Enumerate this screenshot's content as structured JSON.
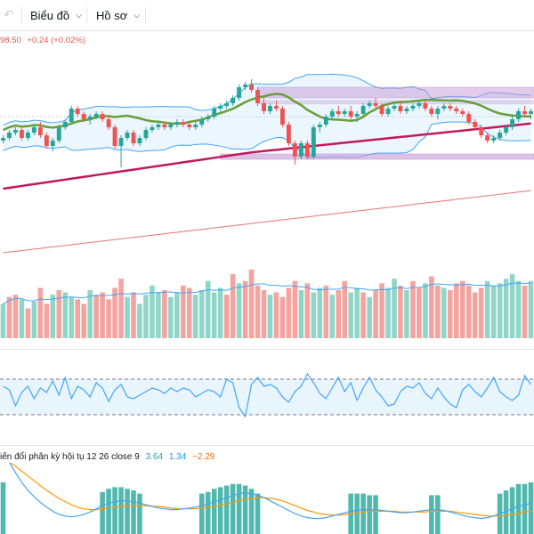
{
  "toolbar": {
    "undo_icon": "undo-arrow-icon",
    "redo_icon": "redo-arrow-icon",
    "chart_menu_label": "Biểu đồ",
    "profile_menu_label": "Hồ sơ",
    "chevron_icon": "chevron-down-icon"
  },
  "legend": {
    "price": "98.50",
    "change": "+0.24 (+0.02%)"
  },
  "macd": {
    "title": "iến đổi phân kỳ hội tụ 12 26 close 9",
    "value1": "3.64",
    "value2": "1.34",
    "value3": "−2.29"
  },
  "colors": {
    "up": "#26a69a",
    "down": "#ef5350",
    "upVol": "#8fd6c9",
    "downVol": "#f4a39f",
    "bollinger": "#42a5f5",
    "bollingerFill": "#e3f2fd",
    "ma_green": "#689f38",
    "ma_crimson": "#c2185b",
    "ma_long": "#e57373",
    "zone": "#c89ad8",
    "rsi": "#42a5f5",
    "macd_line": "#42a5f5",
    "signal_line": "#ff9800"
  },
  "chart_data": {
    "type": "candlestick",
    "price_candles": [
      [
        22.0,
        23.0,
        21.5,
        22.5
      ],
      [
        22.5,
        24.0,
        22.0,
        23.5
      ],
      [
        23.5,
        24.5,
        23.0,
        24.0
      ],
      [
        24.0,
        24.5,
        22.0,
        22.5
      ],
      [
        22.5,
        24.0,
        22.0,
        23.5
      ],
      [
        23.5,
        25.0,
        23.0,
        24.5
      ],
      [
        24.5,
        25.5,
        22.5,
        23.0
      ],
      [
        23.0,
        23.5,
        20.5,
        21.0
      ],
      [
        21.0,
        22.5,
        20.0,
        22.0
      ],
      [
        22.0,
        25.0,
        21.5,
        24.5
      ],
      [
        24.5,
        26.0,
        24.0,
        25.5
      ],
      [
        25.5,
        28.5,
        25.0,
        28.0
      ],
      [
        28.0,
        28.5,
        26.5,
        27.0
      ],
      [
        27.0,
        27.5,
        25.5,
        26.0
      ],
      [
        26.0,
        27.0,
        25.0,
        26.5
      ],
      [
        26.5,
        27.5,
        26.0,
        27.0
      ],
      [
        27.0,
        27.5,
        25.5,
        26.0
      ],
      [
        26.0,
        26.5,
        24.0,
        24.5
      ],
      [
        24.5,
        25.0,
        20.5,
        21.0
      ],
      [
        21.0,
        23.0,
        17.0,
        22.5
      ],
      [
        22.5,
        24.0,
        22.0,
        23.5
      ],
      [
        23.5,
        24.0,
        21.0,
        21.5
      ],
      [
        21.5,
        23.0,
        21.0,
        22.5
      ],
      [
        22.5,
        24.5,
        22.0,
        24.0
      ],
      [
        24.0,
        25.0,
        23.5,
        24.5
      ],
      [
        24.5,
        25.5,
        24.0,
        25.0
      ],
      [
        25.0,
        25.5,
        24.0,
        24.5
      ],
      [
        24.5,
        25.5,
        24.0,
        25.0
      ],
      [
        25.0,
        26.0,
        24.5,
        25.5
      ],
      [
        25.5,
        26.0,
        24.5,
        25.0
      ],
      [
        25.0,
        25.5,
        24.0,
        24.5
      ],
      [
        24.5,
        25.5,
        24.0,
        25.0
      ],
      [
        25.0,
        26.5,
        24.5,
        26.0
      ],
      [
        26.0,
        27.0,
        25.5,
        26.5
      ],
      [
        26.5,
        28.5,
        26.0,
        28.0
      ],
      [
        28.0,
        29.0,
        27.5,
        28.5
      ],
      [
        28.5,
        29.5,
        28.0,
        29.0
      ],
      [
        29.0,
        30.5,
        28.5,
        30.0
      ],
      [
        30.0,
        32.5,
        29.5,
        32.0
      ],
      [
        32.0,
        33.0,
        31.5,
        32.5
      ],
      [
        32.5,
        33.5,
        31.0,
        31.5
      ],
      [
        31.5,
        32.0,
        28.5,
        29.0
      ],
      [
        29.0,
        30.0,
        27.0,
        27.5
      ],
      [
        27.5,
        29.0,
        27.0,
        28.5
      ],
      [
        28.5,
        29.5,
        27.5,
        28.0
      ],
      [
        28.0,
        28.5,
        24.5,
        25.0
      ],
      [
        25.0,
        25.5,
        21.0,
        21.5
      ],
      [
        21.5,
        22.0,
        17.5,
        19.0
      ],
      [
        19.0,
        22.0,
        18.5,
        21.5
      ],
      [
        21.5,
        22.0,
        18.5,
        19.0
      ],
      [
        19.0,
        25.0,
        18.5,
        24.5
      ],
      [
        24.5,
        25.5,
        23.5,
        25.0
      ],
      [
        25.0,
        27.0,
        24.5,
        26.5
      ],
      [
        26.5,
        28.0,
        26.0,
        27.5
      ],
      [
        27.5,
        28.5,
        26.5,
        27.0
      ],
      [
        27.0,
        28.0,
        26.5,
        27.5
      ],
      [
        27.5,
        28.5,
        26.0,
        26.5
      ],
      [
        26.5,
        27.5,
        25.5,
        27.0
      ],
      [
        27.0,
        29.0,
        26.5,
        28.5
      ],
      [
        28.5,
        29.5,
        28.0,
        29.0
      ],
      [
        29.0,
        30.0,
        28.0,
        28.5
      ],
      [
        28.5,
        29.0,
        26.5,
        27.0
      ],
      [
        27.0,
        28.5,
        26.5,
        28.0
      ],
      [
        28.0,
        29.0,
        27.5,
        28.5
      ],
      [
        28.5,
        29.5,
        27.0,
        27.5
      ],
      [
        27.5,
        28.5,
        27.0,
        28.0
      ],
      [
        28.0,
        29.0,
        27.5,
        28.5
      ],
      [
        28.5,
        29.5,
        28.0,
        29.0
      ],
      [
        29.0,
        29.5,
        27.5,
        28.0
      ],
      [
        28.0,
        28.5,
        26.5,
        27.0
      ],
      [
        27.0,
        28.5,
        26.0,
        28.0
      ],
      [
        28.0,
        29.0,
        27.5,
        28.5
      ],
      [
        28.5,
        29.0,
        27.5,
        28.0
      ],
      [
        28.0,
        28.5,
        27.0,
        27.5
      ],
      [
        27.5,
        28.0,
        26.5,
        27.0
      ],
      [
        27.0,
        27.5,
        25.0,
        25.5
      ],
      [
        25.5,
        26.0,
        24.0,
        24.5
      ],
      [
        24.5,
        25.0,
        22.5,
        23.0
      ],
      [
        23.0,
        23.5,
        21.5,
        22.0
      ],
      [
        22.0,
        23.0,
        21.5,
        22.5
      ],
      [
        22.5,
        24.0,
        22.0,
        23.5
      ],
      [
        23.5,
        25.0,
        23.0,
        24.5
      ],
      [
        24.5,
        26.5,
        24.0,
        26.0
      ],
      [
        26.0,
        28.0,
        25.5,
        27.5
      ],
      [
        27.5,
        28.5,
        26.5,
        27.0
      ],
      [
        27.0,
        28.0,
        26.0,
        27.5
      ]
    ],
    "volume": [
      30,
      36,
      38,
      34,
      26,
      32,
      44,
      30,
      38,
      42,
      40,
      36,
      34,
      30,
      42,
      38,
      40,
      34,
      44,
      52,
      36,
      40,
      30,
      38,
      46,
      40,
      42,
      36,
      40,
      46,
      44,
      38,
      42,
      50,
      40,
      44,
      38,
      56,
      48,
      50,
      60,
      46,
      42,
      38,
      40,
      36,
      44,
      50,
      42,
      48,
      40,
      44,
      46,
      38,
      42,
      50,
      40,
      44,
      40,
      36,
      42,
      48,
      44,
      52,
      46,
      42,
      50,
      44,
      48,
      54,
      46,
      44,
      42,
      48,
      50,
      46,
      40,
      44,
      50,
      46,
      48,
      52,
      56,
      50,
      46,
      50
    ],
    "volume_down_flags": [
      0,
      1,
      1,
      0,
      1,
      0,
      1,
      1,
      0,
      1,
      0,
      0,
      1,
      1,
      0,
      1,
      1,
      1,
      1,
      1,
      0,
      1,
      0,
      0,
      0,
      0,
      1,
      0,
      0,
      1,
      1,
      0,
      0,
      0,
      0,
      0,
      1,
      1,
      0,
      1,
      1,
      1,
      1,
      0,
      1,
      1,
      1,
      1,
      0,
      1,
      0,
      0,
      1,
      0,
      1,
      1,
      0,
      0,
      1,
      0,
      1,
      1,
      0,
      0,
      1,
      0,
      1,
      1,
      0,
      1,
      1,
      0,
      1,
      1,
      1,
      1,
      1,
      1,
      0,
      0,
      0,
      0,
      0,
      0,
      1,
      0
    ],
    "rsi": [
      62,
      58,
      40,
      55,
      62,
      48,
      60,
      55,
      68,
      52,
      72,
      48,
      62,
      58,
      50,
      66,
      60,
      45,
      58,
      64,
      50,
      48,
      52,
      56,
      60,
      58,
      54,
      60,
      56,
      60,
      58,
      50,
      54,
      58,
      56,
      50,
      70,
      66,
      38,
      28,
      64,
      72,
      62,
      64,
      60,
      50,
      44,
      56,
      62,
      76,
      66,
      54,
      48,
      60,
      72,
      56,
      66,
      46,
      60,
      72,
      58,
      50,
      40,
      42,
      56,
      62,
      60,
      66,
      54,
      48,
      60,
      50,
      42,
      38,
      58,
      64,
      56,
      50,
      60,
      72,
      56,
      50,
      46,
      52,
      74,
      64
    ],
    "macd": [
      6,
      4.5,
      3.2,
      2.0,
      1.0,
      0.2,
      -0.5,
      -1.1,
      -1.6,
      -2.0,
      -2.2,
      -2.3,
      -2.2,
      -2.0,
      -1.7,
      -1.3,
      -0.9,
      -0.6,
      -0.4,
      -0.3,
      -0.3,
      -0.4,
      -0.6,
      -0.8,
      -1.0,
      -1.2,
      -1.3,
      -1.4,
      -1.4,
      -1.3,
      -1.2,
      -1.1,
      -0.9,
      -0.7,
      -0.4,
      -0.2,
      0.1,
      0.4,
      0.6,
      0.7,
      0.6,
      0.4,
      0.1,
      -0.3,
      -0.7,
      -1.1,
      -1.5,
      -1.9,
      -2.2,
      -2.4,
      -2.5,
      -2.5,
      -2.4,
      -2.2,
      -2.0,
      -1.8,
      -1.6,
      -1.5,
      -1.4,
      -1.4,
      -1.4,
      -1.5,
      -1.6,
      -1.7,
      -1.8,
      -1.8,
      -1.7,
      -1.6,
      -1.5,
      -1.4,
      -1.4,
      -1.5,
      -1.7,
      -1.9,
      -2.1,
      -2.3,
      -2.4,
      -2.5,
      -2.4,
      -2.2,
      -1.9,
      -1.6,
      -1.3,
      -1.0,
      -0.8,
      -0.6
    ],
    "macd_signal": [
      5.0,
      4.6,
      4.0,
      3.4,
      2.8,
      2.2,
      1.6,
      1.0,
      0.5,
      0.0,
      -0.4,
      -0.8,
      -1.1,
      -1.3,
      -1.4,
      -1.4,
      -1.3,
      -1.2,
      -1.1,
      -1.0,
      -0.9,
      -0.9,
      -0.9,
      -0.9,
      -1.0,
      -1.0,
      -1.1,
      -1.2,
      -1.3,
      -1.3,
      -1.3,
      -1.3,
      -1.2,
      -1.1,
      -1.0,
      -0.9,
      -0.7,
      -0.5,
      -0.3,
      -0.1,
      0.0,
      0.1,
      0.1,
      0.0,
      -0.1,
      -0.3,
      -0.6,
      -0.9,
      -1.2,
      -1.5,
      -1.7,
      -1.9,
      -2.0,
      -2.1,
      -2.1,
      -2.0,
      -1.9,
      -1.8,
      -1.7,
      -1.6,
      -1.6,
      -1.6,
      -1.6,
      -1.6,
      -1.7,
      -1.7,
      -1.7,
      -1.7,
      -1.7,
      -1.6,
      -1.6,
      -1.6,
      -1.6,
      -1.7,
      -1.8,
      -1.9,
      -2.0,
      -2.1,
      -2.2,
      -2.2,
      -2.2,
      -2.1,
      -2.0,
      -1.9,
      -1.7,
      -1.6
    ]
  }
}
